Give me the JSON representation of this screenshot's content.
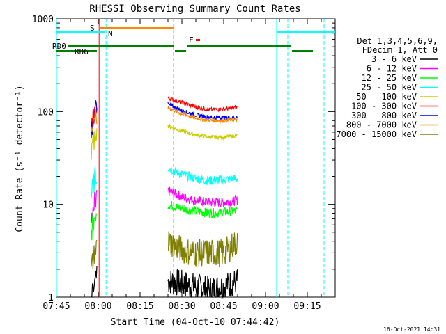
{
  "chart_data": {
    "type": "line",
    "title": "RHESSI Observing Summary Count Rates",
    "xlabel": "Start Time (04-Oct-10 07:44:42)",
    "ylabel": "Count Rate (s⁻¹ detector⁻¹)",
    "yscale": "log",
    "ylim": [
      1,
      1000
    ],
    "xlim_minutes_after_0745": [
      0,
      100
    ],
    "x_ticks": [
      "07:45",
      "08:00",
      "08:15",
      "08:30",
      "08:45",
      "09:00",
      "09:15"
    ],
    "y_ticks": [
      "1",
      "10",
      "100",
      "1000"
    ],
    "legend_header": [
      "Det 1,3,4,5,6,9,",
      "FDecim 1, Att 0"
    ],
    "legend_position": "right",
    "series": [
      {
        "name": "3 - 6 keV",
        "color": "#000000",
        "points": [
          [
            40,
            1.5
          ],
          [
            45,
            1.4
          ],
          [
            50,
            1.3
          ],
          [
            55,
            1.2
          ],
          [
            60,
            1.3
          ],
          [
            65,
            1.5
          ]
        ]
      },
      {
        "name": "6 - 12 keV",
        "color": "#ff00ff",
        "points": [
          [
            40,
            14
          ],
          [
            45,
            12
          ],
          [
            50,
            11
          ],
          [
            55,
            10.5
          ],
          [
            60,
            10.5
          ],
          [
            65,
            11
          ]
        ]
      },
      {
        "name": "12 - 25 keV",
        "color": "#00ff00",
        "points": [
          [
            40,
            10
          ],
          [
            45,
            9
          ],
          [
            50,
            8.5
          ],
          [
            55,
            8
          ],
          [
            60,
            8.2
          ],
          [
            65,
            8.5
          ]
        ]
      },
      {
        "name": "25 - 50 keV",
        "color": "#00ffff",
        "points": [
          [
            40,
            25
          ],
          [
            45,
            21
          ],
          [
            50,
            19
          ],
          [
            55,
            18
          ],
          [
            60,
            18.5
          ],
          [
            65,
            19
          ]
        ]
      },
      {
        "name": "50 - 100 keV",
        "color": "#cccc00",
        "points": [
          [
            40,
            70
          ],
          [
            45,
            62
          ],
          [
            50,
            56
          ],
          [
            55,
            53
          ],
          [
            60,
            53
          ],
          [
            65,
            55
          ]
        ]
      },
      {
        "name": "100 - 300 keV",
        "color": "#ff0000",
        "points": [
          [
            40,
            140
          ],
          [
            45,
            125
          ],
          [
            50,
            112
          ],
          [
            55,
            105
          ],
          [
            60,
            106
          ],
          [
            65,
            112
          ]
        ]
      },
      {
        "name": "300 - 800 keV",
        "color": "#0000ff",
        "points": [
          [
            40,
            120
          ],
          [
            45,
            102
          ],
          [
            50,
            92
          ],
          [
            55,
            87
          ],
          [
            60,
            86
          ],
          [
            65,
            87
          ]
        ]
      },
      {
        "name": "800 - 7000 keV",
        "color": "#ff8800",
        "points": [
          [
            40,
            110
          ],
          [
            45,
            95
          ],
          [
            50,
            85
          ],
          [
            55,
            80
          ],
          [
            60,
            80
          ],
          [
            65,
            82
          ]
        ]
      },
      {
        "name": "7000 - 15000 keV",
        "color": "#808000",
        "points": [
          [
            40,
            4
          ],
          [
            45,
            3.2
          ],
          [
            50,
            3
          ],
          [
            55,
            3
          ],
          [
            60,
            3
          ],
          [
            65,
            4
          ]
        ]
      }
    ],
    "markers": {
      "S": {
        "label": "S"
      },
      "N": {
        "label": "N"
      },
      "F": {
        "label": "F"
      },
      "RD0": {
        "label": "RD0"
      },
      "RD6": {
        "label": "RD6"
      }
    }
  },
  "footer": {
    "date": "16-Oct-2021 14:31"
  }
}
